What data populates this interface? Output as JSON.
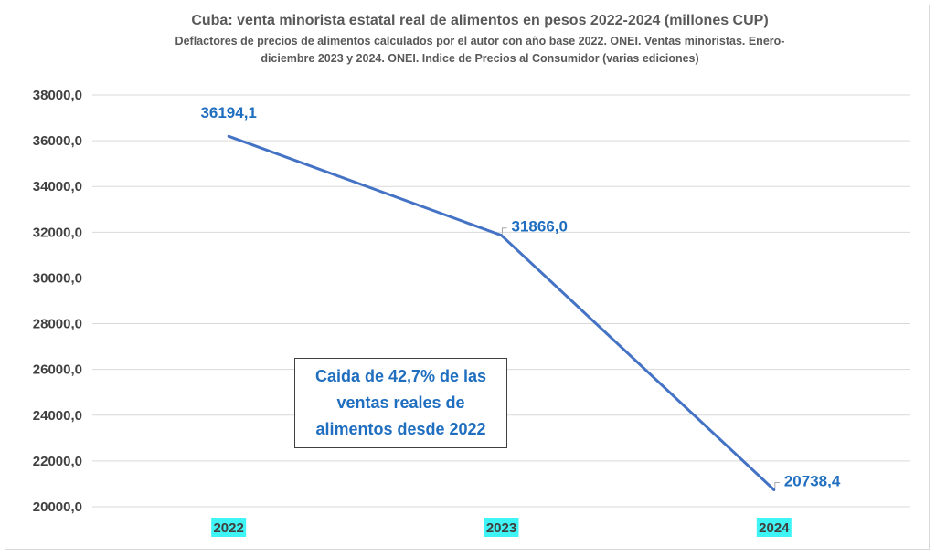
{
  "chart_data": {
    "type": "line",
    "title": "Cuba: venta minorista estatal real de alimentos en pesos 2022-2024 (millones CUP)",
    "subtitle_line1": "Deflactores de precios de alimentos calculados por el autor con año base 2022. ONEI. Ventas minoristas. Enero-",
    "subtitle_line2": "diciembre 2023 y 2024. ONEI. Indice de Precios al Consumidor (varias ediciones)",
    "categories": [
      "2022",
      "2023",
      "2024"
    ],
    "series": [
      {
        "values": [
          36194.1,
          31866.0,
          20738.4
        ]
      }
    ],
    "data_labels": [
      "36194,1",
      "31866,0",
      "20738,4"
    ],
    "y_ticks": [
      "20000,0",
      "22000,0",
      "24000,0",
      "26000,0",
      "28000,0",
      "30000,0",
      "32000,0",
      "34000,0",
      "36000,0",
      "38000,0"
    ],
    "ylim": [
      20000,
      38000
    ],
    "grid": true,
    "legend": "none",
    "annotation": "Caida de 42,7% de las ventas reales de alimentos desde 2022",
    "colors": {
      "line": "#4472c4",
      "data_label": "#1f6ebf",
      "category_highlight": "#3ff4f4",
      "gridline": "#d9d9d9"
    }
  }
}
